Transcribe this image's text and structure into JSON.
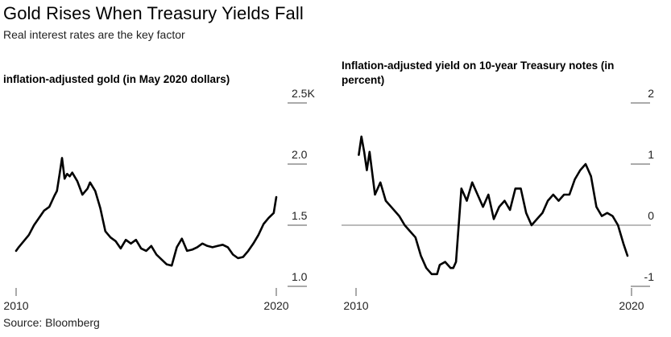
{
  "title": "Gold Rises When Treasury Yields Fall",
  "subtitle": "Real interest rates are the key factor",
  "source": "Source: Bloomberg",
  "chart_data": [
    {
      "type": "line",
      "title": "inflation-adjusted gold (in May 2020 dollars)",
      "x_ticks": [
        "2010",
        "2020"
      ],
      "y_ticks": [
        "2.5K",
        "2.0",
        "1.5",
        "1.0"
      ],
      "y_tick_values": [
        2500,
        2000,
        1500,
        1000
      ],
      "xlim": [
        2009.9,
        2020.1
      ],
      "ylim": [
        1000,
        2500
      ],
      "grid": false,
      "series": [
        {
          "x": [
            2009.9,
            2010.0,
            2010.2,
            2010.4,
            2010.6,
            2010.8,
            2011.0,
            2011.2,
            2011.4,
            2011.5,
            2011.6,
            2011.7,
            2011.8,
            2011.9,
            2012.0,
            2012.1,
            2012.3,
            2012.5,
            2012.7,
            2012.8,
            2013.0,
            2013.2,
            2013.4,
            2013.6,
            2013.8,
            2014.0,
            2014.2,
            2014.4,
            2014.6,
            2014.8,
            2015.0,
            2015.2,
            2015.4,
            2015.6,
            2015.8,
            2016.0,
            2016.2,
            2016.4,
            2016.6,
            2016.8,
            2017.0,
            2017.2,
            2017.4,
            2017.6,
            2017.8,
            2018.0,
            2018.2,
            2018.4,
            2018.6,
            2018.8,
            2019.0,
            2019.2,
            2019.4,
            2019.6,
            2019.8,
            2020.0,
            2020.1
          ],
          "y": [
            1290,
            1320,
            1370,
            1420,
            1500,
            1560,
            1620,
            1650,
            1740,
            1780,
            1910,
            2050,
            1880,
            1920,
            1900,
            1930,
            1860,
            1750,
            1800,
            1850,
            1780,
            1640,
            1450,
            1400,
            1370,
            1310,
            1380,
            1350,
            1380,
            1310,
            1290,
            1330,
            1260,
            1220,
            1180,
            1170,
            1320,
            1390,
            1290,
            1300,
            1320,
            1350,
            1330,
            1320,
            1330,
            1340,
            1320,
            1260,
            1230,
            1240,
            1290,
            1350,
            1420,
            1510,
            1560,
            1600,
            1730
          ]
        }
      ]
    },
    {
      "type": "line",
      "title": "Inflation-adjusted yield on 10-year Treasury notes (in percent)",
      "x_ticks": [
        "2010",
        "2020"
      ],
      "y_ticks": [
        "2",
        "1",
        "0",
        "-1"
      ],
      "y_tick_values": [
        2,
        1,
        0,
        -1
      ],
      "xlim": [
        2009.9,
        2020.1
      ],
      "ylim": [
        -1,
        2
      ],
      "grid": false,
      "zero_line": 0,
      "series": [
        {
          "x": [
            2010.0,
            2010.1,
            2010.2,
            2010.3,
            2010.4,
            2010.6,
            2010.8,
            2011.0,
            2011.2,
            2011.5,
            2011.7,
            2011.9,
            2012.1,
            2012.3,
            2012.5,
            2012.7,
            2012.9,
            2013.0,
            2013.2,
            2013.4,
            2013.5,
            2013.6,
            2013.8,
            2014.0,
            2014.2,
            2014.4,
            2014.6,
            2014.8,
            2015.0,
            2015.2,
            2015.4,
            2015.6,
            2015.8,
            2016.0,
            2016.2,
            2016.4,
            2016.6,
            2016.8,
            2017.0,
            2017.2,
            2017.4,
            2017.6,
            2017.8,
            2018.0,
            2018.2,
            2018.4,
            2018.6,
            2018.8,
            2019.0,
            2019.2,
            2019.4,
            2019.6,
            2019.8,
            2019.95
          ],
          "y": [
            1.15,
            1.45,
            1.2,
            0.9,
            1.2,
            0.5,
            0.7,
            0.4,
            0.3,
            0.15,
            0.0,
            -0.1,
            -0.2,
            -0.5,
            -0.7,
            -0.8,
            -0.8,
            -0.65,
            -0.6,
            -0.7,
            -0.7,
            -0.6,
            0.6,
            0.4,
            0.7,
            0.5,
            0.3,
            0.5,
            0.1,
            0.3,
            0.4,
            0.25,
            0.6,
            0.6,
            0.2,
            0.0,
            0.1,
            0.2,
            0.4,
            0.5,
            0.4,
            0.5,
            0.5,
            0.75,
            0.9,
            1.0,
            0.8,
            0.3,
            0.15,
            0.2,
            0.15,
            0.0,
            -0.3,
            -0.5
          ]
        }
      ]
    }
  ]
}
